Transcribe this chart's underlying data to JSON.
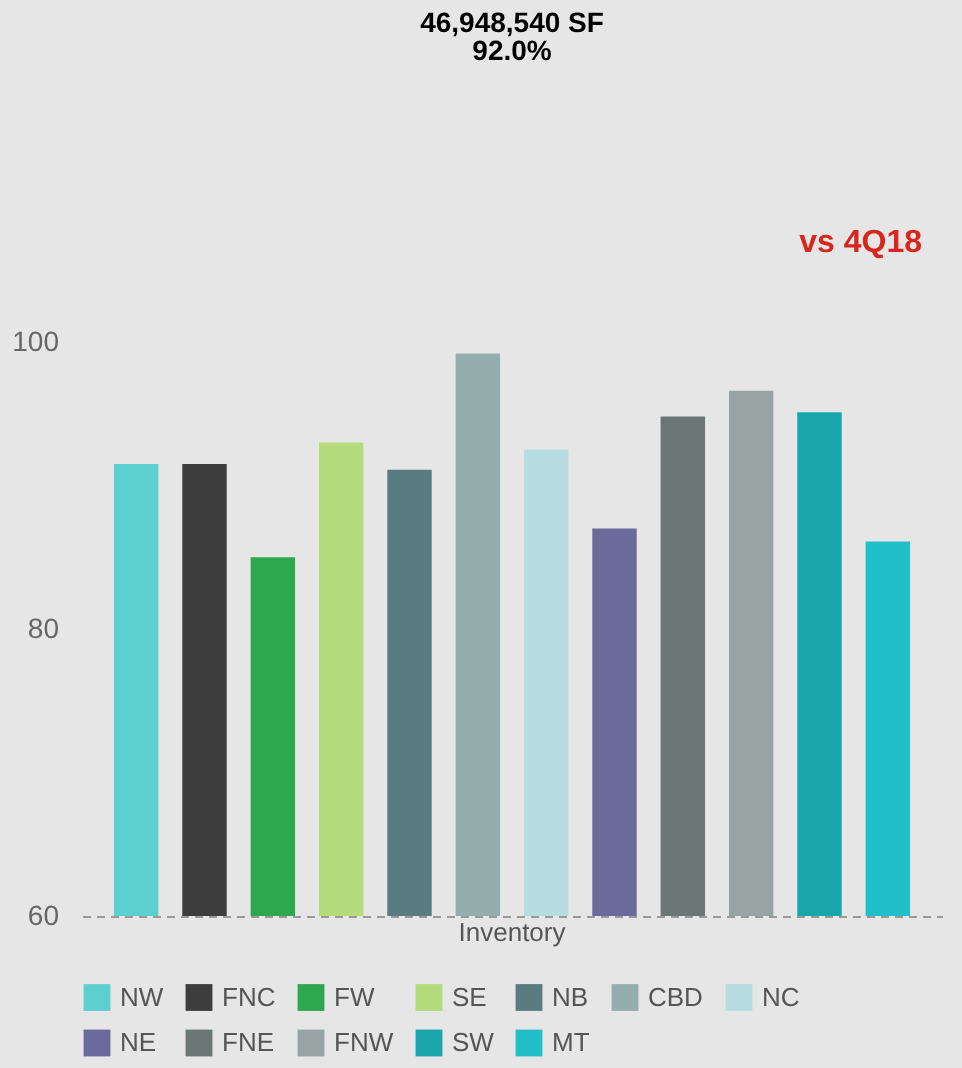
{
  "chart_data": {
    "type": "bar",
    "title": "46,948,540 SF",
    "subtitle": "92.0%",
    "annotations": [
      "vs 4Q18"
    ],
    "categories": [
      "Inventory"
    ],
    "ylim": [
      60,
      100
    ],
    "yticks": [
      60,
      80,
      100
    ],
    "grid": false,
    "legend": "bottom",
    "series": [
      {
        "name": "NW",
        "color": "#5ecfcf",
        "values": [
          91.5
        ]
      },
      {
        "name": "FNC",
        "color": "#3d3d3d",
        "values": [
          91.5
        ]
      },
      {
        "name": "FW",
        "color": "#2ea84f",
        "values": [
          85.0
        ]
      },
      {
        "name": "SE",
        "color": "#b5dc7c",
        "values": [
          93.0
        ]
      },
      {
        "name": "NB",
        "color": "#5a7c80",
        "values": [
          91.1
        ]
      },
      {
        "name": "CBD",
        "color": "#94aeae",
        "values": [
          99.2
        ]
      },
      {
        "name": "NC",
        "color": "#b8dde0",
        "values": [
          92.5
        ]
      },
      {
        "name": "NE",
        "color": "#6a6b9a",
        "values": [
          87.0
        ]
      },
      {
        "name": "FNE",
        "color": "#6a7775",
        "values": [
          94.8
        ]
      },
      {
        "name": "FNW",
        "color": "#97a4a3",
        "values": [
          96.6
        ]
      },
      {
        "name": "SW",
        "color": "#1aa5aa",
        "values": [
          95.1
        ]
      },
      {
        "name": "MT",
        "color": "#21c0c8",
        "values": [
          86.1
        ]
      }
    ]
  }
}
